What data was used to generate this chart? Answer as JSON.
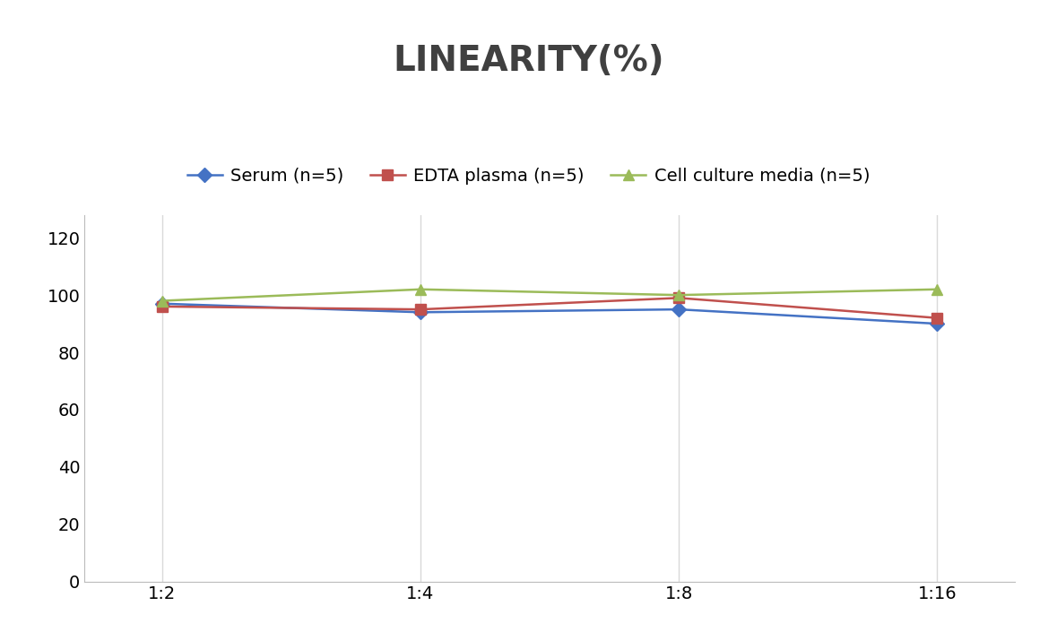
{
  "title": "LINEARITY(%)",
  "title_fontsize": 28,
  "title_fontweight": "bold",
  "title_color": "#404040",
  "x_labels": [
    "1:2",
    "1:4",
    "1:8",
    "1:16"
  ],
  "x_positions": [
    0,
    1,
    2,
    3
  ],
  "series": [
    {
      "label": "Serum (n=5)",
      "color": "#4472C4",
      "marker": "D",
      "values": [
        97,
        94,
        95,
        90
      ]
    },
    {
      "label": "EDTA plasma (n=5)",
      "color": "#C0504D",
      "marker": "s",
      "values": [
        96,
        95,
        99,
        92
      ]
    },
    {
      "label": "Cell culture media (n=5)",
      "color": "#9BBB59",
      "marker": "^",
      "values": [
        98,
        102,
        100,
        102
      ]
    }
  ],
  "ylim": [
    0,
    128
  ],
  "yticks": [
    0,
    20,
    40,
    60,
    80,
    100,
    120
  ],
  "grid_color": "#D9D9D9",
  "background_color": "#FFFFFF",
  "legend_fontsize": 14,
  "tick_fontsize": 14,
  "line_width": 1.8,
  "marker_size": 8
}
